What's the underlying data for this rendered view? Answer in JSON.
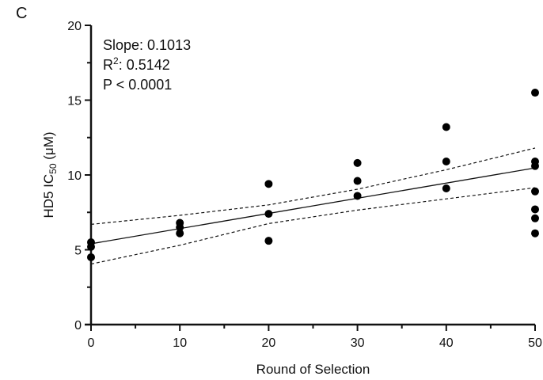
{
  "panel_label": "C",
  "stats": {
    "slope": "Slope: 0.1013",
    "r2_prefix": "R",
    "r2_sup": "2",
    "r2_value": ": 0.5142",
    "p_value": "P < 0.0001"
  },
  "chart_data": {
    "type": "scatter",
    "title": "",
    "xlabel": "Round of Selection",
    "ylabel_prefix": "HD5 IC",
    "ylabel_sub": "50",
    "ylabel_suffix": " (μM)",
    "xlim": [
      0,
      50
    ],
    "ylim": [
      0,
      20
    ],
    "x_ticks": [
      0,
      10,
      20,
      30,
      40,
      50
    ],
    "y_ticks": [
      0,
      5,
      10,
      15,
      20
    ],
    "points": [
      {
        "x": 0,
        "y": 5.5
      },
      {
        "x": 0,
        "y": 5.2
      },
      {
        "x": 0,
        "y": 4.5
      },
      {
        "x": 10,
        "y": 6.8
      },
      {
        "x": 10,
        "y": 6.5
      },
      {
        "x": 10,
        "y": 6.1
      },
      {
        "x": 20,
        "y": 9.4
      },
      {
        "x": 20,
        "y": 7.4
      },
      {
        "x": 20,
        "y": 5.6
      },
      {
        "x": 30,
        "y": 10.8
      },
      {
        "x": 30,
        "y": 9.6
      },
      {
        "x": 30,
        "y": 8.6
      },
      {
        "x": 40,
        "y": 13.2
      },
      {
        "x": 40,
        "y": 10.9
      },
      {
        "x": 40,
        "y": 9.1
      },
      {
        "x": 50,
        "y": 15.5
      },
      {
        "x": 50,
        "y": 10.9
      },
      {
        "x": 50,
        "y": 10.6
      },
      {
        "x": 50,
        "y": 8.9
      },
      {
        "x": 50,
        "y": 7.7
      },
      {
        "x": 50,
        "y": 7.1
      },
      {
        "x": 50,
        "y": 6.1
      }
    ],
    "fit_line": {
      "x": [
        0,
        50
      ],
      "y": [
        5.4,
        10.47
      ]
    },
    "ci_upper": {
      "x": [
        0,
        10,
        20,
        30,
        40,
        50
      ],
      "y": [
        6.7,
        7.3,
        8.0,
        9.05,
        10.35,
        11.8
      ]
    },
    "ci_lower": {
      "x": [
        0,
        10,
        20,
        30,
        40,
        50
      ],
      "y": [
        4.05,
        5.3,
        6.75,
        7.65,
        8.4,
        9.15
      ]
    },
    "grid": false,
    "legend": "none"
  }
}
